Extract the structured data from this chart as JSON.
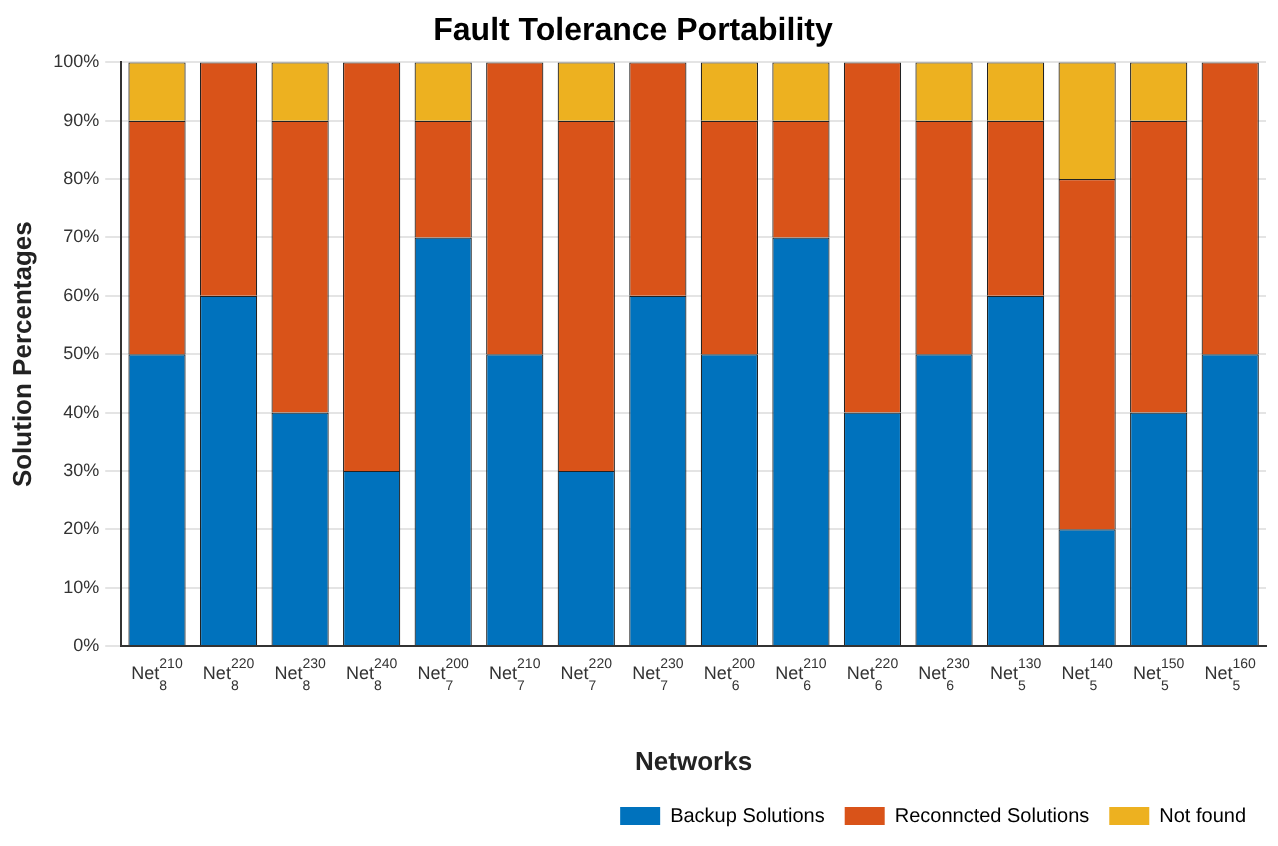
{
  "chart_data": {
    "type": "bar",
    "title": "Fault Tolerance Portability",
    "xlabel": "Networks",
    "ylabel": "Solution Percentages",
    "categories": [
      "Net$^{210}$$_{8}$",
      "Net$^{220}$$_{8}$",
      "Net$^{230}$$_{8}$",
      "Net$^{240}$$_{8}$",
      "Net$^{200}$$_{7}$",
      "Net$^{210}$$_{7}$",
      "Net$^{220}$$_{7}$",
      "Net$^{230}$$_{7}$",
      "Net$^{200}$$_{6}$",
      "Net$^{210}$$_{6}$",
      "Net$^{220}$$_{6}$",
      "Net$^{230}$$_{6}$",
      "Net$^{130}$$_{5}$",
      "Net$^{140}$$_{5}$",
      "Net$^{150}$$_{5}$",
      "Net$^{160}$$_{5}$"
    ],
    "series": [
      {
        "name": "Backup Solutions",
        "color": "#0072bd",
        "values": [
          50,
          60,
          40,
          30,
          70,
          50,
          30,
          60,
          50,
          70,
          40,
          50,
          60,
          20,
          40,
          50
        ]
      },
      {
        "name": "Reconncted Solutions",
        "color": "#d95319",
        "values": [
          40,
          40,
          50,
          70,
          20,
          50,
          60,
          40,
          40,
          20,
          60,
          40,
          30,
          60,
          50,
          50
        ]
      },
      {
        "name": "Not found",
        "color": "#edb120",
        "values": [
          10,
          0,
          10,
          0,
          10,
          0,
          10,
          0,
          10,
          10,
          0,
          10,
          10,
          20,
          10,
          0
        ]
      }
    ],
    "stacked": true,
    "ylim": [
      0,
      100
    ],
    "yticks": [
      {
        "value": 0,
        "label": "0%"
      },
      {
        "value": 10,
        "label": "10%"
      },
      {
        "value": 20,
        "label": "20%"
      },
      {
        "value": 30,
        "label": "30%"
      },
      {
        "value": 40,
        "label": "40%"
      },
      {
        "value": 50,
        "label": "50%"
      },
      {
        "value": 60,
        "label": "60%"
      },
      {
        "value": 70,
        "label": "70%"
      },
      {
        "value": 80,
        "label": "80%"
      },
      {
        "value": 90,
        "label": "90%"
      },
      {
        "value": 100,
        "label": "100%"
      }
    ],
    "grid": "y",
    "legend": "bottom right"
  }
}
